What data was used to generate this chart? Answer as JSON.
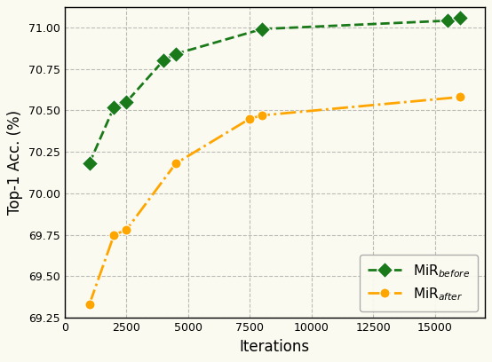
{
  "mir_before_x": [
    1000,
    2000,
    2500,
    4000,
    4500,
    8000,
    15500,
    16000
  ],
  "mir_before_y": [
    70.18,
    70.52,
    70.55,
    70.8,
    70.84,
    70.99,
    71.04,
    71.06
  ],
  "mir_after_x": [
    1000,
    2000,
    2500,
    4500,
    7500,
    8000,
    16000
  ],
  "mir_after_y": [
    69.33,
    69.75,
    69.78,
    70.18,
    70.45,
    70.47,
    70.58
  ],
  "green_color": "#1a7a1a",
  "orange_color": "#FFA500",
  "xlabel": "Iterations",
  "ylabel": "Top-1 Acc. (%)",
  "xlim": [
    0,
    17000
  ],
  "ylim": [
    69.25,
    71.12
  ],
  "xticks": [
    0,
    2500,
    5000,
    7500,
    10000,
    12500,
    15000
  ],
  "xticklabels": [
    "0",
    "2500",
    "5000",
    "7500",
    "10000",
    "12500",
    "15000"
  ],
  "yticks": [
    69.25,
    69.5,
    69.75,
    70.0,
    70.25,
    70.5,
    70.75,
    71.0
  ],
  "legend_label_before": "MiR$_{before}$",
  "legend_label_after": "MiR$_{after}$",
  "background_color": "#fafaf0"
}
